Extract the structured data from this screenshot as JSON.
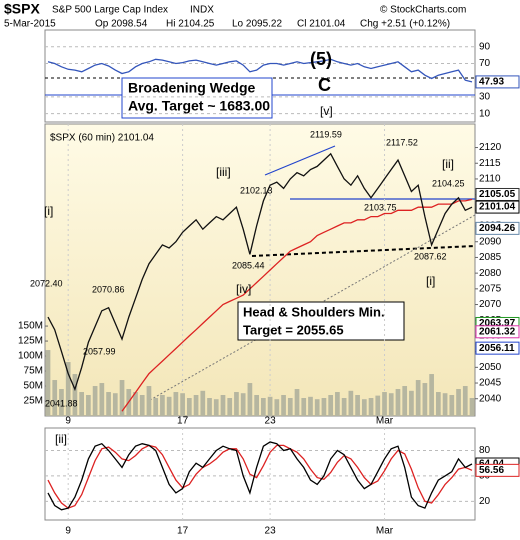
{
  "header": {
    "symbol": "$SPX",
    "name": "S&P 500 Large Cap Index",
    "exchange": "INDX",
    "date": "5-Mar-2015",
    "open": "Op 2098.54",
    "high": "Hi 2104.25",
    "low": "Lo 2095.22",
    "close": "Cl 2101.04",
    "change": "Chg +2.51 (+0.12%)",
    "credit": "© StockCharts.com"
  },
  "chart_data": [
    {
      "type": "line",
      "ylim": [
        0,
        110
      ],
      "yticks": [
        10,
        30,
        70,
        90
      ],
      "grid": true,
      "series": [
        {
          "color": "#3355bb",
          "values": [
            72,
            70,
            66,
            63,
            62,
            60,
            64,
            68,
            70,
            67,
            62,
            58,
            60,
            66,
            70,
            72,
            75,
            74,
            72,
            70,
            71,
            73,
            74,
            72,
            70,
            68,
            70,
            72,
            73,
            68,
            60,
            62,
            68,
            70,
            70,
            68,
            70,
            72,
            70,
            71,
            72,
            73,
            75,
            72,
            70,
            68,
            70,
            66,
            64,
            66,
            68,
            70,
            72,
            66,
            60,
            62,
            56,
            52,
            56,
            58,
            60,
            62,
            50,
            47.93
          ]
        }
      ],
      "markers": [
        {
          "value": 47.93,
          "color": "#3355bb"
        }
      ]
    },
    {
      "type": "line",
      "ylim": [
        2034.5,
        2127.5
      ],
      "yticks": [
        2040,
        2045,
        2050,
        2055,
        2060,
        2065,
        2070,
        2075,
        2080,
        2085,
        2090,
        2095,
        2100,
        2105,
        2110,
        2115,
        2120
      ],
      "y2lim": [
        0,
        487
      ],
      "y2ticks": [
        {
          "value": 25,
          "label": "25M"
        },
        {
          "value": 50,
          "label": "50M"
        },
        {
          "value": 75,
          "label": "75M"
        },
        {
          "value": 100,
          "label": "100M"
        },
        {
          "value": 125,
          "label": "125M"
        },
        {
          "value": 150,
          "label": "150M"
        }
      ],
      "categories": [
        null,
        null,
        null,
        "9",
        null,
        null,
        null,
        null,
        null,
        null,
        null,
        null,
        null,
        null,
        null,
        null,
        null,
        null,
        null,
        null,
        "17",
        null,
        null,
        null,
        null,
        null,
        null,
        null,
        null,
        null,
        null,
        null,
        null,
        "23",
        null,
        null,
        null,
        null,
        null,
        null,
        null,
        null,
        null,
        null,
        null,
        null,
        null,
        null,
        null,
        null,
        "Mar",
        null,
        null,
        null,
        null,
        null,
        null,
        null,
        null,
        null,
        null,
        null,
        null,
        null
      ],
      "series": [
        {
          "type": "bar",
          "axis": "y2",
          "color": "#b6b6a0",
          "values": [
            110,
            60,
            45,
            90,
            70,
            40,
            35,
            50,
            55,
            40,
            38,
            60,
            45,
            40,
            35,
            50,
            30,
            35,
            32,
            40,
            38,
            30,
            35,
            42,
            30,
            28,
            35,
            30,
            40,
            38,
            55,
            35,
            30,
            32,
            28,
            35,
            30,
            45,
            30,
            32,
            28,
            30,
            35,
            40,
            30,
            42,
            35,
            28,
            30,
            34,
            40,
            38,
            45,
            50,
            42,
            60,
            55,
            70,
            40,
            38,
            35,
            45,
            50,
            30
          ]
        },
        {
          "color": "#dd2222",
          "values": [
            null,
            null,
            null,
            null,
            null,
            null,
            null,
            null,
            null,
            null,
            null,
            2036,
            2039,
            2042,
            2045,
            2048,
            2050,
            2052,
            2054,
            2056,
            2058,
            2060,
            2062,
            2064,
            2066,
            2068,
            2070,
            2071,
            2072,
            2073,
            2075,
            2077,
            2079,
            2081,
            2083,
            2085,
            2087,
            2088,
            2089,
            2090,
            2092,
            2093,
            2094,
            2095,
            2096,
            2096,
            2097,
            2097,
            2098,
            2098,
            2099,
            2099,
            2100,
            2100,
            2100,
            2101,
            2101,
            2101,
            2102,
            2102,
            2102,
            2103,
            2103,
            2103.5
          ]
        },
        {
          "color": "#111111",
          "values": [
            2066,
            2062,
            2055,
            2048,
            2043,
            2050,
            2058,
            2063,
            2068,
            2069,
            2064,
            2059,
            2066,
            2072,
            2078,
            2083,
            2086,
            2089,
            2088,
            2090,
            2093,
            2095,
            2097,
            2094,
            2096,
            2098,
            2097,
            2099,
            2101,
            2094,
            2086,
            2095,
            2103,
            2108,
            2109,
            2107,
            2110,
            2112,
            2111,
            2113,
            2114,
            2116,
            2118,
            2114,
            2110,
            2108,
            2111,
            2107,
            2104,
            2107,
            2110,
            2113,
            2116,
            2111,
            2106,
            2108,
            2098,
            2089,
            2094,
            2099,
            2102,
            2104,
            2100,
            2101
          ]
        }
      ],
      "markers": [
        {
          "value": 2105.05,
          "color": "#333333"
        },
        {
          "value": 2101.04,
          "color": "#000000"
        },
        {
          "value": 2094.26,
          "color": "#6688aa"
        },
        {
          "value": 2063.97,
          "color": "#229922"
        },
        {
          "value": 2061.32,
          "color": "#dd33aa"
        },
        {
          "value": 2056.11,
          "color": "#2244cc"
        }
      ],
      "annotations": [
        "(5)",
        "C",
        "Broadening Wedge",
        "Avg. Target ~ 1683.00",
        "[v]",
        "[iii]",
        "[iv]",
        "[i]",
        "[ii]",
        "[i]",
        "Head & Shoulders Min.",
        "Target = 2055.65",
        "$SPX (60 min) 2101.04",
        "2072.40",
        "2070.86",
        "2057.99",
        "2041.88",
        "2102.13",
        "2085.44",
        "2119.59",
        "2117.52",
        "2103.75",
        "2104.25",
        "2087.62"
      ]
    },
    {
      "type": "line",
      "ylim": [
        -2,
        106.5
      ],
      "yticks": [
        20,
        50,
        80
      ],
      "grid": true,
      "categories": [
        null,
        null,
        null,
        "9",
        null,
        null,
        null,
        null,
        null,
        null,
        null,
        null,
        null,
        null,
        null,
        null,
        null,
        null,
        null,
        null,
        "17",
        null,
        null,
        null,
        null,
        null,
        null,
        null,
        null,
        null,
        null,
        null,
        null,
        "23",
        null,
        null,
        null,
        null,
        null,
        null,
        null,
        null,
        null,
        null,
        null,
        null,
        null,
        null,
        null,
        null,
        "Mar",
        null,
        null,
        null,
        null,
        null,
        null,
        null,
        null,
        null,
        null,
        null,
        null,
        null
      ],
      "series": [
        {
          "color": "#dd2222",
          "values": [
            45,
            30,
            18,
            12,
            15,
            28,
            48,
            68,
            82,
            84,
            78,
            70,
            68,
            74,
            82,
            86,
            84,
            75,
            60,
            45,
            36,
            40,
            52,
            60,
            64,
            70,
            78,
            82,
            82,
            70,
            52,
            48,
            62,
            78,
            86,
            86,
            82,
            78,
            70,
            58,
            48,
            46,
            54,
            66,
            74,
            70,
            60,
            48,
            40,
            44,
            56,
            70,
            80,
            76,
            58,
            36,
            20,
            18,
            28,
            40,
            48,
            58,
            60,
            56.56
          ]
        },
        {
          "color": "#000000",
          "values": [
            30,
            15,
            10,
            12,
            25,
            45,
            70,
            85,
            88,
            80,
            70,
            60,
            75,
            85,
            88,
            86,
            80,
            60,
            40,
            30,
            35,
            55,
            65,
            60,
            70,
            80,
            85,
            82,
            80,
            50,
            30,
            60,
            85,
            90,
            88,
            80,
            82,
            70,
            60,
            45,
            40,
            50,
            70,
            80,
            75,
            60,
            45,
            35,
            40,
            55,
            70,
            82,
            85,
            60,
            25,
            15,
            12,
            30,
            45,
            50,
            55,
            70,
            60,
            64.04
          ]
        }
      ],
      "markers": [
        {
          "value": 64.04,
          "color": "#000000"
        },
        {
          "value": 56.56,
          "color": "#dd2222"
        }
      ],
      "annotations": [
        "[ii]"
      ]
    }
  ]
}
